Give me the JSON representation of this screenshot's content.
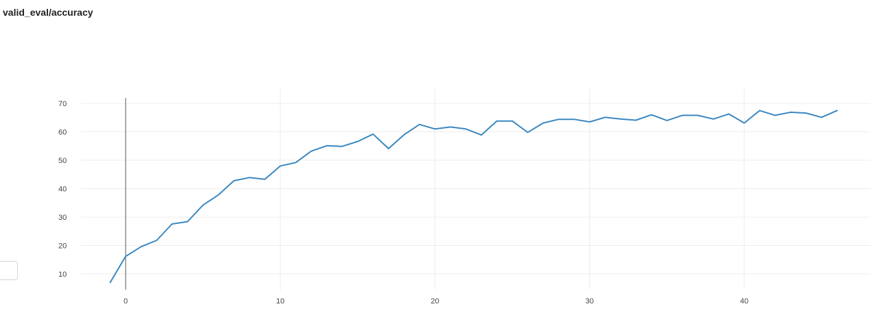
{
  "panel": {
    "title": "valid_eval/accuracy"
  },
  "colors": {
    "line": "#3a87c0",
    "grid": "#ececec",
    "zero_line": "#555555",
    "tick_text": "#444444"
  },
  "chart_data": {
    "type": "line",
    "title": "",
    "xlabel": "",
    "ylabel": "",
    "xlim": [
      -2,
      48
    ],
    "ylim": [
      5,
      72
    ],
    "x_ticks": [
      0,
      10,
      20,
      30,
      40
    ],
    "y_ticks": [
      10,
      20,
      30,
      40,
      50,
      60,
      70
    ],
    "grid": true,
    "legend": "none",
    "series": [
      {
        "x": [
          -1,
          0,
          1,
          2,
          3,
          4,
          5,
          6,
          7,
          8,
          9,
          10,
          11,
          12,
          13,
          14,
          15,
          16,
          17,
          18,
          19,
          20,
          21,
          22,
          23,
          24,
          25,
          26,
          27,
          28,
          29,
          30,
          31,
          32,
          33,
          34,
          35,
          36,
          37,
          38,
          39,
          40,
          41,
          42,
          43,
          44,
          45,
          46
        ],
        "y": [
          7,
          16.2,
          19.6,
          21.8,
          27.6,
          28.4,
          34.2,
          37.8,
          42.8,
          43.9,
          43.3,
          48.0,
          49.2,
          53.2,
          55.1,
          54.9,
          56.6,
          59.2,
          54.1,
          59.0,
          62.6,
          61.0,
          61.7,
          61.0,
          58.9,
          63.8,
          63.8,
          59.8,
          63.1,
          64.4,
          64.4,
          63.5,
          65.1,
          64.5,
          64.1,
          66.0,
          64.0,
          65.8,
          65.8,
          64.5,
          66.3,
          63.1,
          67.5,
          65.8,
          66.9,
          66.6,
          65.1,
          67.5
        ]
      }
    ]
  }
}
